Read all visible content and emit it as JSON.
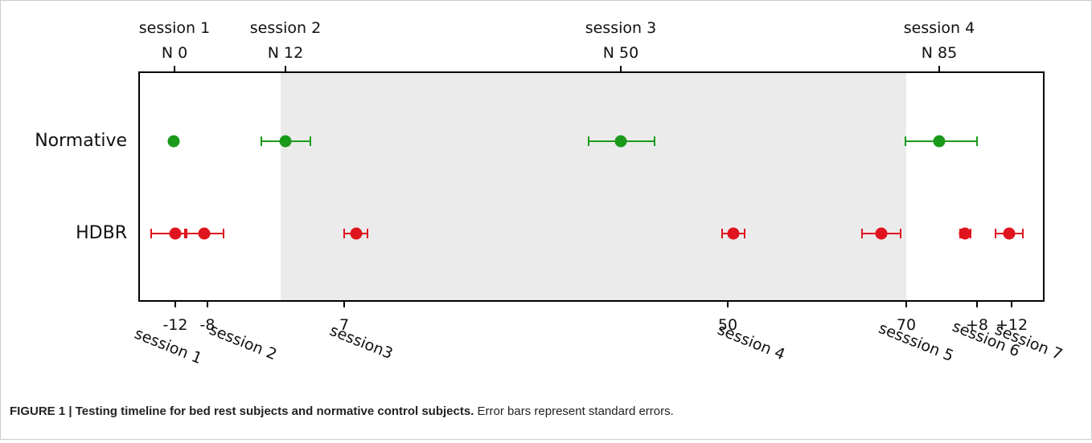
{
  "figure": {
    "top_labels": [
      {
        "session": "session 1",
        "n": "N 0"
      },
      {
        "session": "session 2",
        "n": "N 12"
      },
      {
        "session": "session 3",
        "n": "N 50"
      },
      {
        "session": "session 4",
        "n": "N 85"
      }
    ],
    "rows": [
      "Normative",
      "HDBR"
    ],
    "bottom_ticks": [
      "-12",
      "-8",
      "7",
      "50",
      "70",
      "+8",
      "+12"
    ],
    "bottom_sessions": [
      "session 1",
      "session 2",
      "session3",
      "session 4",
      "sesssion 5",
      "session 6",
      "session 7"
    ],
    "caption": {
      "bold": "FIGURE 1 | Testing timeline for bed rest subjects and normative control subjects.",
      "text": " Error bars represent standard errors."
    }
  }
}
